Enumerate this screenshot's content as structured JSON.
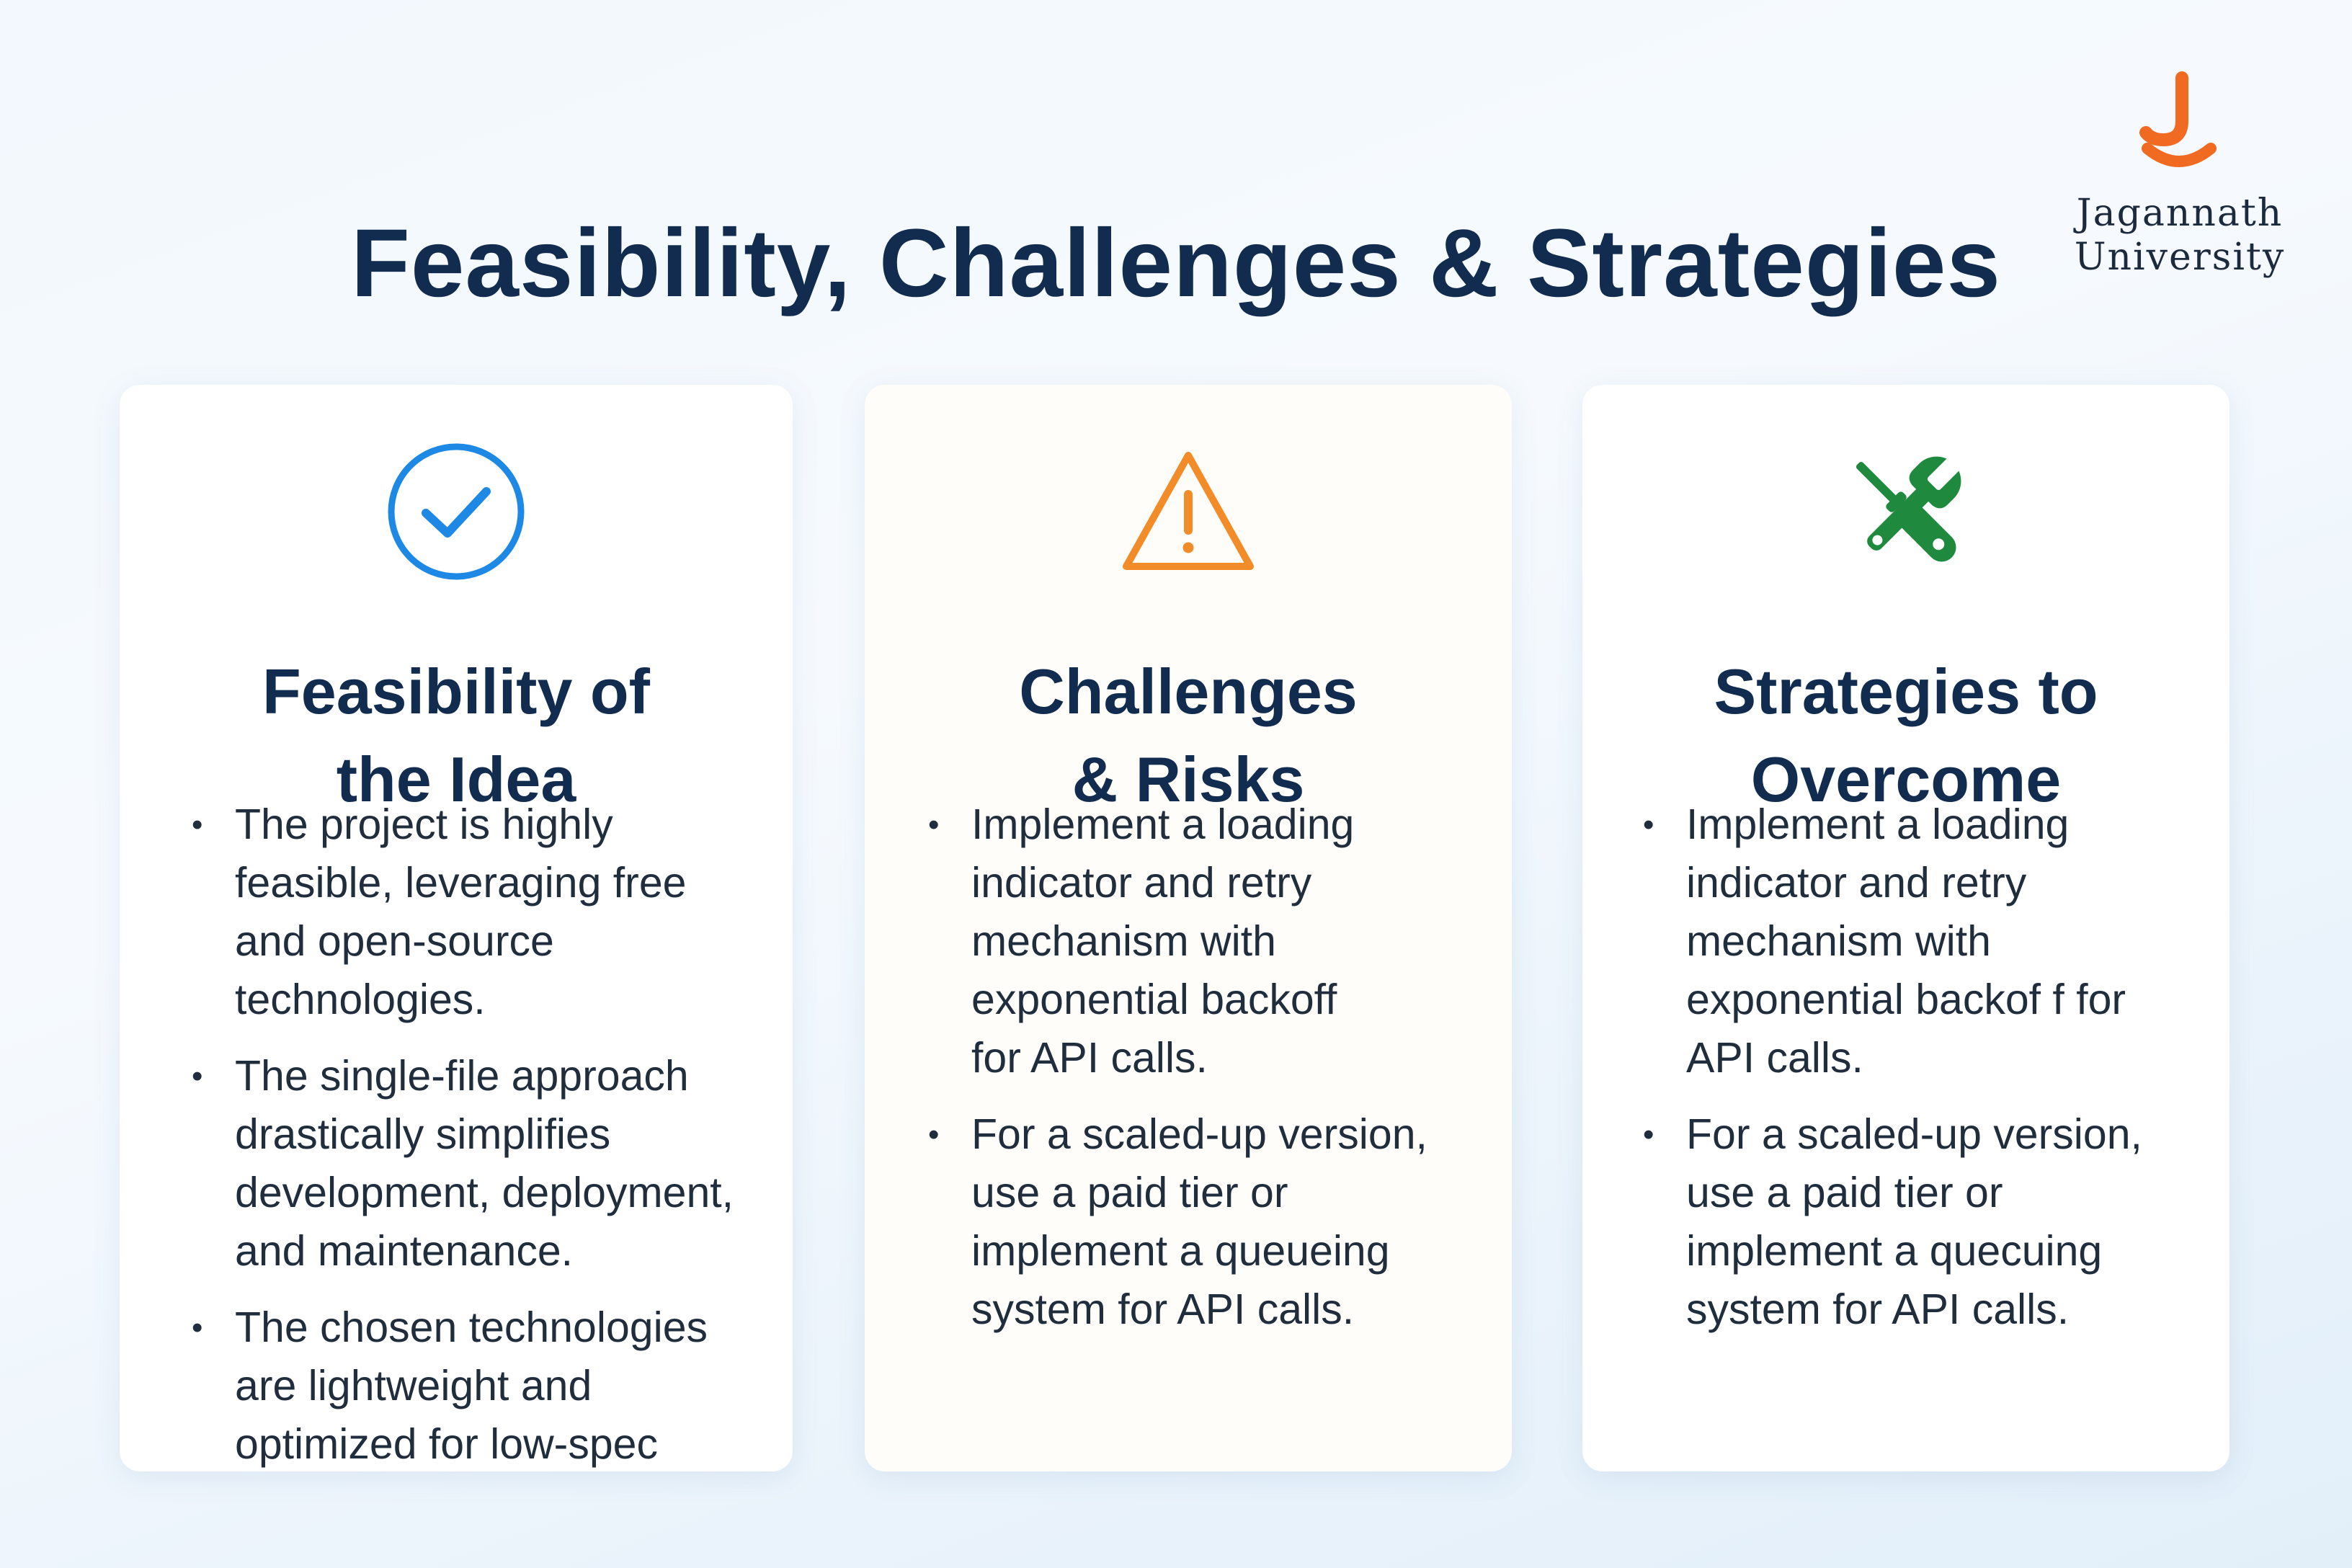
{
  "header": {
    "title": "Feasibility, Challenges & Strategies"
  },
  "logo": {
    "icon": "jagannath-university-logo-icon",
    "brand_color": "#f06a22",
    "text_lines": [
      "Jagannath",
      "University"
    ]
  },
  "cards": [
    {
      "icon": "check-circle-icon",
      "icon_color": "#1e88e5",
      "title_lines": [
        "Feasibility of",
        "the Idea"
      ],
      "bullets": [
        {
          "lines": [
            "The project is highly",
            "feasible, leveraging free",
            "and open-source",
            "technologies."
          ]
        },
        {
          "lines": [
            "The single-file approach",
            "drastically simplifies",
            "development, deployment,",
            "and maintenance."
          ]
        },
        {
          "lines": [
            "The chosen technologies",
            "are lightweight and",
            "optimized for low-spec"
          ]
        }
      ]
    },
    {
      "icon": "warning-triangle-icon",
      "icon_color": "#f28c28",
      "title_lines": [
        "Challenges",
        "& Risks"
      ],
      "bullets": [
        {
          "lines": [
            "Implement a loading",
            "indicator and retry",
            "mechanism with",
            "exponential backoff",
            "for API calls."
          ]
        },
        {
          "lines": [
            "For a scaled-up version,",
            "use a paid tier or",
            "implement a queueing",
            "system for API calls."
          ]
        }
      ]
    },
    {
      "icon": "wrench-screwdriver-icon",
      "icon_color": "#1f8a3e",
      "title_lines": [
        "Strategies to",
        "Overcome"
      ],
      "bullets": [
        {
          "lines": [
            "Implement a loading",
            "indicator and retry",
            "mechanism with",
            "exponential backof f for",
            "API calls."
          ]
        },
        {
          "lines": [
            "For a scaled-up version,",
            "use a paid tier or",
            "implement a quecuing",
            "system for API calls."
          ]
        }
      ]
    }
  ]
}
